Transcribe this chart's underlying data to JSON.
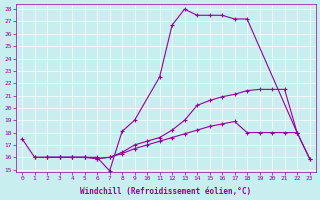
{
  "xlabel": "Windchill (Refroidissement éolien,°C)",
  "bg_color": "#c8eef0",
  "line_color": "#990099",
  "xlim": [
    -0.5,
    23.5
  ],
  "ylim": [
    14.8,
    28.4
  ],
  "yticks": [
    15,
    16,
    17,
    18,
    19,
    20,
    21,
    22,
    23,
    24,
    25,
    26,
    27,
    28
  ],
  "xticks": [
    0,
    1,
    2,
    3,
    4,
    5,
    6,
    7,
    8,
    9,
    10,
    11,
    12,
    13,
    14,
    15,
    16,
    17,
    18,
    19,
    20,
    21,
    22,
    23
  ],
  "curve1_x": [
    0,
    1,
    2,
    3,
    4,
    5,
    6,
    7,
    8,
    9,
    11,
    12,
    13,
    14,
    15,
    16,
    17,
    18,
    22,
    23
  ],
  "curve1_y": [
    17.5,
    16.0,
    16.0,
    16.0,
    16.0,
    16.0,
    16.0,
    14.9,
    18.1,
    19.0,
    22.5,
    26.7,
    28.0,
    27.5,
    27.5,
    27.5,
    27.2,
    27.2,
    18.0,
    15.9
  ],
  "curve2_x": [
    1,
    2,
    3,
    4,
    5,
    6,
    7,
    8,
    9,
    10,
    11,
    12,
    13,
    14,
    15,
    16,
    17,
    18,
    19,
    20,
    21,
    22,
    23
  ],
  "curve2_y": [
    16.0,
    16.0,
    16.0,
    16.0,
    16.0,
    15.9,
    16.0,
    16.4,
    17.0,
    17.3,
    17.6,
    18.2,
    19.0,
    20.2,
    20.6,
    20.9,
    21.1,
    21.4,
    21.5,
    21.5,
    21.5,
    18.0,
    15.9
  ],
  "curve3_x": [
    2,
    3,
    4,
    5,
    6,
    7,
    8,
    9,
    10,
    11,
    12,
    13,
    14,
    15,
    16,
    17,
    18,
    19,
    20,
    21,
    22
  ],
  "curve3_y": [
    16.0,
    16.0,
    16.0,
    16.0,
    15.9,
    16.0,
    16.3,
    16.7,
    17.0,
    17.3,
    17.6,
    17.9,
    18.2,
    18.5,
    18.7,
    18.9,
    18.0,
    18.0,
    18.0,
    18.0,
    18.0
  ]
}
